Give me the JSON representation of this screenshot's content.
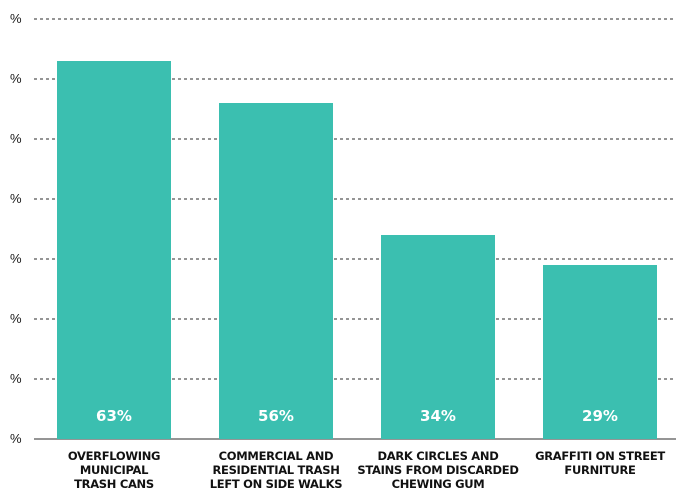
{
  "chart_data": {
    "type": "bar",
    "title": "",
    "xlabel": "",
    "ylabel": "",
    "categories": [
      [
        "OVERFLOWING",
        "MUNICIPAL",
        "TRASH CANS"
      ],
      [
        "COMMERCIAL AND",
        "RESIDENTIAL TRASH",
        "LEFT ON SIDE WALKS"
      ],
      [
        "DARK CIRCLES AND",
        "STAINS FROM DISCARDED",
        "CHEWING GUM"
      ],
      [
        "GRAFFITI ON STREET",
        "FURNITURE"
      ]
    ],
    "values": [
      63,
      56,
      34,
      29
    ],
    "value_labels": [
      "63%",
      "56%",
      "34%",
      "29%"
    ],
    "ylim": [
      0,
      70
    ],
    "y_ticks": [
      0,
      10,
      20,
      30,
      40,
      50,
      60,
      70
    ],
    "y_tick_labels": [
      "%",
      "%",
      "%",
      "%",
      "%",
      "%",
      "%",
      "%"
    ],
    "grid": true,
    "grid_style": "dashed",
    "bar_color": "#3bbfb0",
    "value_label_color": "#ffffff"
  }
}
